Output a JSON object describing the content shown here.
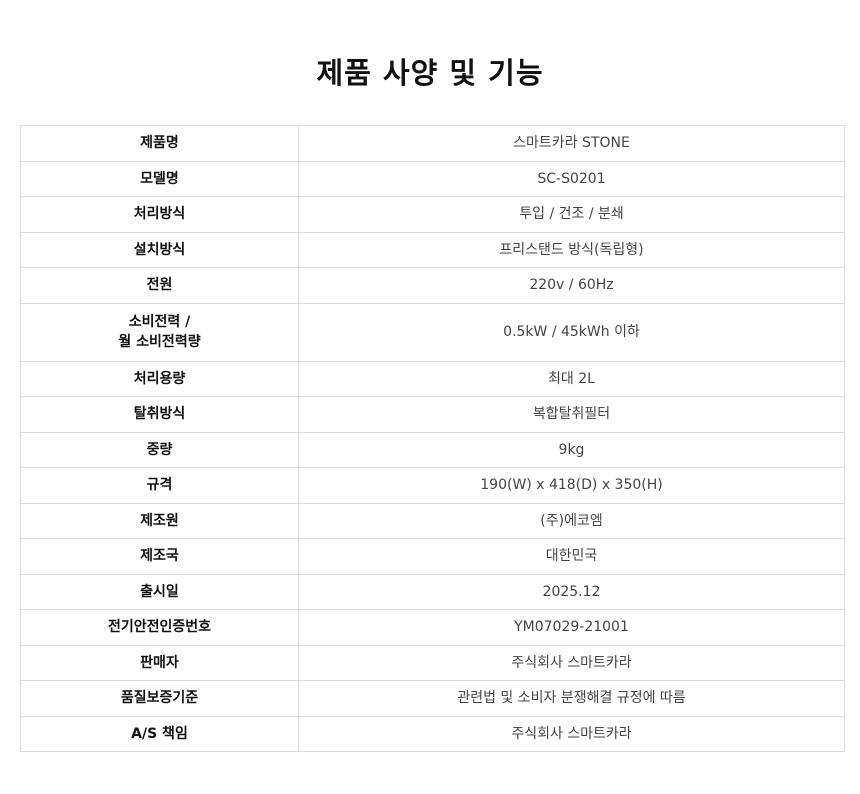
{
  "title": "제품 사양 및 기능",
  "specs": [
    {
      "label": "제품명",
      "value": "스마트카라 STONE"
    },
    {
      "label": "모델명",
      "value": "SC-S0201"
    },
    {
      "label": "처리방식",
      "value": "투입 / 건조 / 분쇄"
    },
    {
      "label": "설치방식",
      "value": "프리스탠드 방식(독립형)"
    },
    {
      "label": "전원",
      "value": "220v / 60Hz"
    },
    {
      "label": "소비전력 /",
      "label2": "월 소비전력량",
      "value": "0.5kW / 45kWh 이하"
    },
    {
      "label": "처리용량",
      "value": "최대 2L"
    },
    {
      "label": "탈취방식",
      "value": "복합탈취필터"
    },
    {
      "label": "중량",
      "value": "9kg"
    },
    {
      "label": "규격",
      "value": "190(W) x 418(D) x 350(H)"
    },
    {
      "label": "제조원",
      "value": "(주)에코엠"
    },
    {
      "label": "제조국",
      "value": "대한민국"
    },
    {
      "label": "출시일",
      "value": "2025.12"
    },
    {
      "label": "전기안전인증번호",
      "value": "YM07029-21001"
    },
    {
      "label": "판매자",
      "value": "주식회사 스마트카라"
    },
    {
      "label": "품질보증기준",
      "value": "관련법 및 소비자 분쟁해결 규정에 따름"
    },
    {
      "label": "A/S 책임",
      "value": "주식회사 스마트카라"
    }
  ]
}
